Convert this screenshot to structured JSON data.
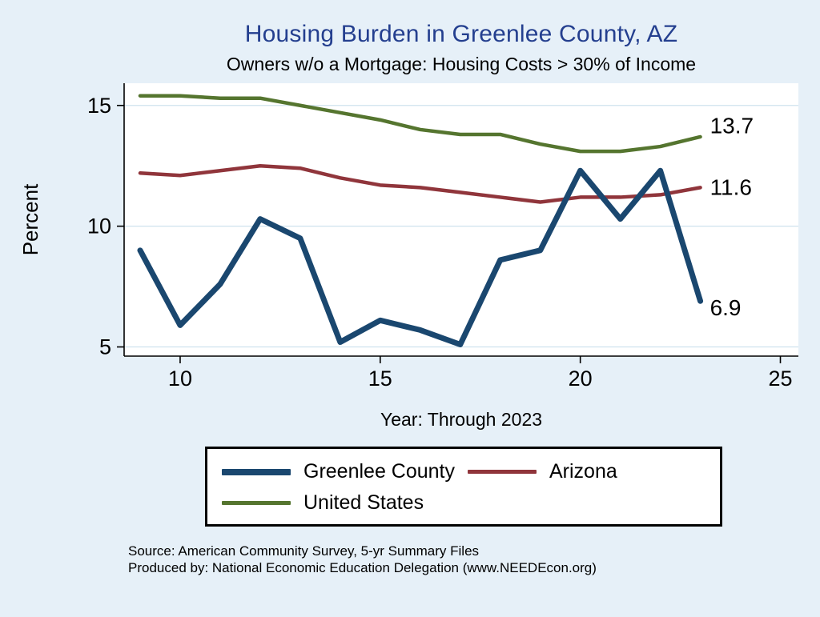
{
  "header": {
    "title": "Housing Burden in Greenlee County, AZ",
    "subtitle": "Owners w/o a Mortgage: Housing Costs > 30% of Income"
  },
  "chart_data": {
    "type": "line",
    "title": "Housing Burden in Greenlee County, AZ",
    "subtitle": "Owners w/o a Mortgage: Housing Costs > 30% of Income",
    "xlabel": "Year: Through 2023",
    "ylabel": "Percent",
    "x": [
      9,
      10,
      11,
      12,
      13,
      14,
      15,
      16,
      17,
      18,
      19,
      20,
      21,
      22,
      23
    ],
    "series": [
      {
        "name": "Greenlee County",
        "color": "#1a476f",
        "width": 7,
        "values": [
          9.0,
          5.9,
          7.6,
          10.3,
          9.5,
          5.2,
          6.1,
          5.7,
          5.1,
          8.6,
          9.0,
          12.3,
          10.3,
          12.3,
          6.9
        ]
      },
      {
        "name": "Arizona",
        "color": "#90353b",
        "width": 4.5,
        "values": [
          12.2,
          12.1,
          12.3,
          12.5,
          12.4,
          12.0,
          11.7,
          11.6,
          11.4,
          11.2,
          11.0,
          11.2,
          11.2,
          11.3,
          11.6
        ]
      },
      {
        "name": "United States",
        "color": "#55752f",
        "width": 4.5,
        "values": [
          15.4,
          15.4,
          15.3,
          15.3,
          15.0,
          14.7,
          14.4,
          14.0,
          13.8,
          13.8,
          13.4,
          13.1,
          13.1,
          13.3,
          13.7
        ]
      }
    ],
    "xticks": [
      10,
      15,
      20,
      25
    ],
    "yticks": [
      5,
      10,
      15
    ],
    "xlim": [
      8.6,
      25.45
    ],
    "ylim": [
      4.62,
      15.92
    ],
    "end_labels": [
      {
        "label": "13.7",
        "x": 23,
        "y": 14.15
      },
      {
        "label": "11.6",
        "x": 23,
        "y": 11.6
      },
      {
        "label": "6.9",
        "x": 23,
        "y": 6.6
      }
    ],
    "grid": "horizontal",
    "grid_color": "#cfe2ee",
    "plot_bg": "#ffffff",
    "legend_position": "bottom"
  },
  "legend": {
    "items": [
      {
        "label": "Greenlee County",
        "color": "#1a476f",
        "thickness": 8
      },
      {
        "label": "Arizona",
        "color": "#90353b",
        "thickness": 5
      },
      {
        "label": "United States",
        "color": "#55752f",
        "thickness": 5
      }
    ]
  },
  "footer": {
    "source": "Source: American Community Survey, 5-yr Summary Files",
    "produced_by": "Produced by: National Economic Education Delegation (www.NEEDEcon.org)"
  }
}
